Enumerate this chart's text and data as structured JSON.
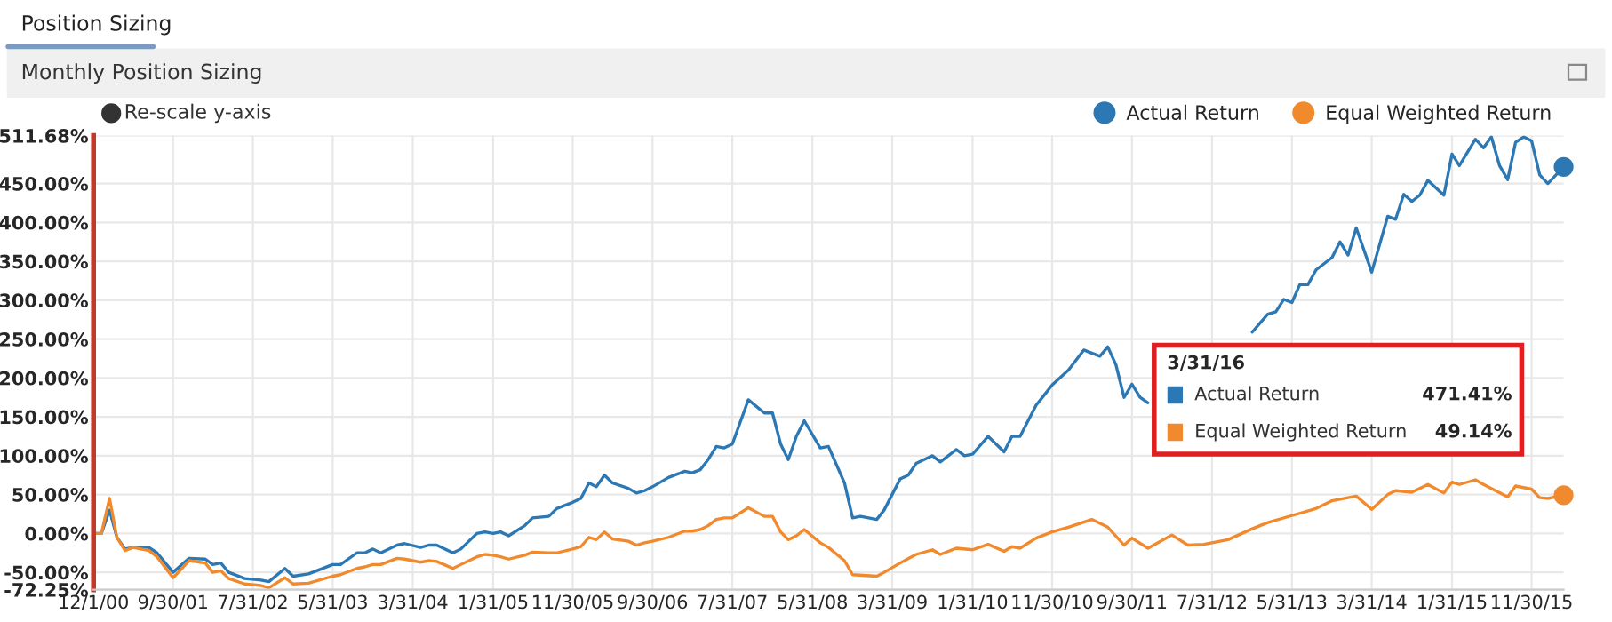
{
  "chart_data": {
    "type": "line",
    "title": "Monthly Position Sizing",
    "annotations": [
      "Position Sizing",
      "Re-scale y-axis",
      "3/31/16",
      "Actual Return",
      "471.41%",
      "Equal Weighted Return",
      "49.14%"
    ],
    "series": [
      {
        "name": "Actual Return",
        "color": "#2b78b4",
        "x": [
          "2000-12-01",
          "2000-12-31",
          "2001-01-31",
          "2001-02-28",
          "2001-03-31",
          "2001-04-30",
          "2001-06-30",
          "2001-07-31",
          "2001-09-30",
          "2001-11-30",
          "2002-01-31",
          "2002-02-28",
          "2002-03-31",
          "2002-04-30",
          "2002-06-30",
          "2002-08-31",
          "2002-09-30",
          "2002-11-30",
          "2002-12-31",
          "2003-02-28",
          "2003-05-31",
          "2003-06-30",
          "2003-08-31",
          "2003-09-30",
          "2003-10-31",
          "2003-11-30",
          "2004-01-31",
          "2004-02-29",
          "2004-04-30",
          "2004-05-31",
          "2004-06-30",
          "2004-08-31",
          "2004-09-30",
          "2004-11-30",
          "2004-12-31",
          "2005-01-31",
          "2005-02-28",
          "2005-03-31",
          "2005-05-31",
          "2005-06-30",
          "2005-08-31",
          "2005-09-30",
          "2005-11-30",
          "2005-12-31",
          "2006-01-31",
          "2006-02-28",
          "2006-03-31",
          "2006-04-30",
          "2006-06-30",
          "2006-07-31",
          "2006-08-31",
          "2006-09-30",
          "2006-11-30",
          "2007-01-31",
          "2007-02-28",
          "2007-03-31",
          "2007-04-30",
          "2007-05-31",
          "2007-06-30",
          "2007-07-31",
          "2007-09-30",
          "2007-11-30",
          "2007-12-31",
          "2008-01-31",
          "2008-02-29",
          "2008-03-31",
          "2008-04-30",
          "2008-06-30",
          "2008-07-31",
          "2008-09-30",
          "2008-10-31",
          "2008-11-30",
          "2009-01-31",
          "2009-02-28",
          "2009-04-30",
          "2009-05-31",
          "2009-06-30",
          "2009-08-31",
          "2009-09-30",
          "2009-11-30",
          "2009-12-31",
          "2010-01-31",
          "2010-03-31",
          "2010-05-31",
          "2010-06-30",
          "2010-07-31",
          "2010-09-30",
          "2010-10-31",
          "2010-11-30",
          "2011-01-31",
          "2011-03-31",
          "2011-04-30",
          "2011-05-31",
          "2011-06-30",
          "2011-07-31",
          "2011-08-31",
          "2011-09-30",
          "2011-10-31",
          "2011-11-30",
          "2012-02-29",
          "2012-12-31",
          "2013-01-31",
          "2013-02-28",
          "2013-03-31",
          "2013-04-30",
          "2013-05-31",
          "2013-06-30",
          "2013-07-31",
          "2013-08-31",
          "2013-10-31",
          "2013-11-30",
          "2013-12-31",
          "2014-01-31",
          "2014-03-31",
          "2014-05-31",
          "2014-06-30",
          "2014-07-31",
          "2014-08-31",
          "2014-09-30",
          "2014-10-31",
          "2014-12-31",
          "2015-01-31",
          "2015-02-28",
          "2015-04-30",
          "2015-05-31",
          "2015-06-30",
          "2015-07-31",
          "2015-08-31",
          "2015-09-30",
          "2015-10-31",
          "2015-11-30",
          "2015-12-31",
          "2016-01-31",
          "2016-03-31"
        ],
        "values": [
          0,
          0,
          30,
          -5,
          -20,
          -18,
          -18,
          -25,
          -50,
          -32,
          -33,
          -40,
          -38,
          -50,
          -58,
          -60,
          -62,
          -45,
          -55,
          -52,
          -40,
          -40,
          -25,
          -25,
          -20,
          -25,
          -15,
          -13,
          -18,
          -15,
          -15,
          -25,
          -20,
          0,
          2,
          0,
          2,
          -3,
          10,
          20,
          22,
          32,
          40,
          45,
          65,
          60,
          75,
          65,
          58,
          52,
          55,
          60,
          72,
          80,
          78,
          82,
          95,
          112,
          110,
          115,
          172,
          155,
          155,
          115,
          95,
          125,
          145,
          110,
          112,
          65,
          20,
          22,
          18,
          30,
          70,
          75,
          90,
          100,
          92,
          108,
          100,
          102,
          125,
          105,
          125,
          125,
          165,
          178,
          191,
          210,
          236,
          232,
          228,
          240,
          217,
          175,
          192,
          175,
          168,
          null,
          259,
          271,
          282,
          285,
          301,
          297,
          320,
          320,
          339,
          355,
          375,
          358,
          393,
          336,
          408,
          404,
          436,
          427,
          435,
          454,
          435,
          488,
          473,
          507,
          496,
          510,
          473,
          455,
          503,
          510,
          505,
          461,
          450,
          471.41
        ]
      },
      {
        "name": "Equal Weighted Return",
        "color": "#f08a2c",
        "x": [
          "2000-12-01",
          "2000-12-31",
          "2001-01-31",
          "2001-02-28",
          "2001-03-31",
          "2001-04-30",
          "2001-06-30",
          "2001-07-31",
          "2001-09-30",
          "2001-11-30",
          "2002-01-31",
          "2002-02-28",
          "2002-03-31",
          "2002-04-30",
          "2002-06-30",
          "2002-08-31",
          "2002-09-30",
          "2002-11-30",
          "2002-12-31",
          "2003-02-28",
          "2003-05-31",
          "2003-06-30",
          "2003-08-31",
          "2003-09-30",
          "2003-10-31",
          "2003-11-30",
          "2004-01-31",
          "2004-02-29",
          "2004-04-30",
          "2004-05-31",
          "2004-06-30",
          "2004-08-31",
          "2004-09-30",
          "2004-11-30",
          "2004-12-31",
          "2005-01-31",
          "2005-02-28",
          "2005-03-31",
          "2005-05-31",
          "2005-06-30",
          "2005-08-31",
          "2005-09-30",
          "2005-11-30",
          "2005-12-31",
          "2006-01-31",
          "2006-02-28",
          "2006-03-31",
          "2006-04-30",
          "2006-06-30",
          "2006-07-31",
          "2006-08-31",
          "2006-09-30",
          "2006-11-30",
          "2007-01-31",
          "2007-02-28",
          "2007-03-31",
          "2007-04-30",
          "2007-05-31",
          "2007-06-30",
          "2007-07-31",
          "2007-09-30",
          "2007-11-30",
          "2007-12-31",
          "2008-01-31",
          "2008-02-29",
          "2008-03-31",
          "2008-04-30",
          "2008-06-30",
          "2008-07-31",
          "2008-09-30",
          "2008-10-31",
          "2009-01-31",
          "2009-02-28",
          "2009-04-30",
          "2009-06-30",
          "2009-08-31",
          "2009-09-30",
          "2009-11-30",
          "2010-01-31",
          "2010-03-31",
          "2010-05-31",
          "2010-06-30",
          "2010-07-31",
          "2010-09-30",
          "2010-11-30",
          "2011-01-31",
          "2011-04-30",
          "2011-06-30",
          "2011-08-31",
          "2011-09-30",
          "2011-11-30",
          "2012-02-29",
          "2012-04-30",
          "2012-06-30",
          "2012-09-30",
          "2012-12-31",
          "2013-02-28",
          "2013-05-31",
          "2013-08-31",
          "2013-10-31",
          "2013-12-31",
          "2014-01-31",
          "2014-03-31",
          "2014-05-31",
          "2014-06-30",
          "2014-08-31",
          "2014-10-31",
          "2014-12-31",
          "2015-01-31",
          "2015-02-28",
          "2015-04-30",
          "2015-05-31",
          "2015-08-31",
          "2015-09-30",
          "2015-11-30",
          "2015-12-31",
          "2016-01-31",
          "2016-03-31"
        ],
        "values": [
          0,
          0,
          45,
          -5,
          -22,
          -18,
          -22,
          -30,
          -57,
          -35,
          -38,
          -50,
          -48,
          -58,
          -65,
          -67,
          -70,
          -57,
          -65,
          -64,
          -55,
          -53,
          -45,
          -43,
          -40,
          -40,
          -32,
          -33,
          -37,
          -35,
          -36,
          -45,
          -40,
          -30,
          -27,
          -28,
          -30,
          -33,
          -28,
          -24,
          -25,
          -25,
          -20,
          -17,
          -5,
          -8,
          2,
          -7,
          -10,
          -15,
          -12,
          -10,
          -5,
          3,
          3,
          5,
          10,
          18,
          20,
          20,
          33,
          22,
          22,
          2,
          -8,
          -3,
          5,
          -12,
          -18,
          -35,
          -53,
          -55,
          -50,
          -38,
          -27,
          -21,
          -27,
          -19,
          -21,
          -14,
          -23,
          -17,
          -19,
          -6,
          2,
          8,
          18,
          8,
          -15,
          -6,
          -19,
          -2,
          -15,
          -14,
          -8,
          6,
          14,
          23,
          32,
          42,
          46,
          48,
          31,
          50,
          55,
          53,
          63,
          52,
          66,
          63,
          69,
          63,
          47,
          61,
          57,
          46,
          45,
          49.14
        ]
      }
    ],
    "xlim": [
      "2000-12-01",
      "2016-03-31"
    ],
    "xticks": [
      {
        "value": "2000-12-01",
        "label": "12/1/00"
      },
      {
        "value": "2001-09-30",
        "label": "9/30/01"
      },
      {
        "value": "2002-07-31",
        "label": "7/31/02"
      },
      {
        "value": "2003-05-31",
        "label": "5/31/03"
      },
      {
        "value": "2004-03-31",
        "label": "3/31/04"
      },
      {
        "value": "2005-01-31",
        "label": "1/31/05"
      },
      {
        "value": "2005-11-30",
        "label": "11/30/05"
      },
      {
        "value": "2006-09-30",
        "label": "9/30/06"
      },
      {
        "value": "2007-07-31",
        "label": "7/31/07"
      },
      {
        "value": "2008-05-31",
        "label": "5/31/08"
      },
      {
        "value": "2009-03-31",
        "label": "3/31/09"
      },
      {
        "value": "2010-01-31",
        "label": "1/31/10"
      },
      {
        "value": "2010-11-30",
        "label": "11/30/10"
      },
      {
        "value": "2011-09-30",
        "label": "9/30/11"
      },
      {
        "value": "2012-07-31",
        "label": "7/31/12"
      },
      {
        "value": "2013-05-31",
        "label": "5/31/13"
      },
      {
        "value": "2014-03-31",
        "label": "3/31/14"
      },
      {
        "value": "2015-01-31",
        "label": "1/31/15"
      },
      {
        "value": "2015-11-30",
        "label": "11/30/15"
      }
    ],
    "ylim": [
      -72.25,
      511.68
    ],
    "yticks": [
      {
        "value": -72.25,
        "label": "-72.25%"
      },
      {
        "value": -50,
        "label": "-50.00%"
      },
      {
        "value": 0,
        "label": "0.00%"
      },
      {
        "value": 50,
        "label": "50.00%"
      },
      {
        "value": 100,
        "label": "100.00%"
      },
      {
        "value": 150,
        "label": "150.00%"
      },
      {
        "value": 200,
        "label": "200.00%"
      },
      {
        "value": 250,
        "label": "250.00%"
      },
      {
        "value": 300,
        "label": "300.00%"
      },
      {
        "value": 350,
        "label": "350.00%"
      },
      {
        "value": 400,
        "label": "400.00%"
      },
      {
        "value": 450,
        "label": "450.00%"
      },
      {
        "value": 511.68,
        "label": "511.68%"
      }
    ],
    "grid": true,
    "legend": "top right",
    "marker": "none",
    "line_style": "solid"
  }
}
